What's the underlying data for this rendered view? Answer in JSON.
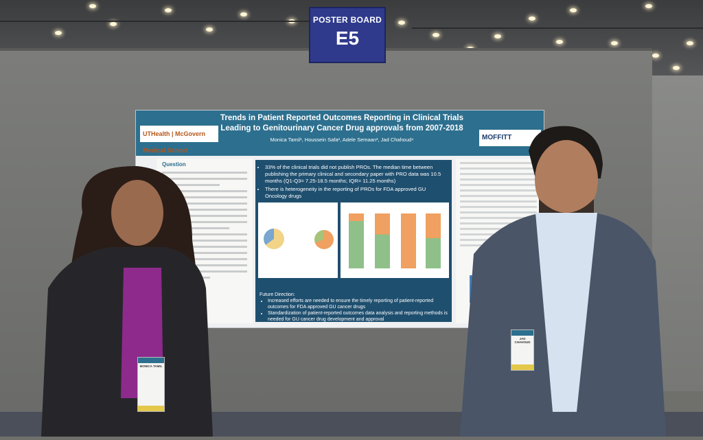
{
  "scene": "poster-session-photo",
  "sign": {
    "line1": "POSTER BOARD",
    "line2": "E5",
    "color": "#2f3a8c"
  },
  "poster": {
    "title_line1": "Trends in Patient Reported Outcomes Reporting in Clinical Trials",
    "title_line2": "Leading to Genitourinary Cancer Drug approvals from 2007-2018",
    "authors": "Monica Tamil¹, Houssein Safa², Adele Semaan³, Jad Chahoud⁴",
    "logo_left": "UTHealth | McGovern Medical School",
    "logo_right": "MOFFITT",
    "left_heading": "Question",
    "bullets": [
      "33% of the clinical trials did not publish PROs. The median time between publishing the primary clinical and secondary paper with PRO data was 10.5 months (Q1-Q3= 7.25-18.5 months; IQR= 11.25 months)",
      "There is heterogeneity in the reporting of PROs for FDA approved GU Oncology drugs"
    ],
    "future_heading": "Future Direction:",
    "future_items": [
      "Increased efforts are needed to ensure the timely reporting of patient-reported outcomes for FDA approved GU cancer drugs",
      "Standardization of patient-reported outcomes data analysis and reporting methods is needed for GU cancer drug development and approval"
    ],
    "header_color": "#2d6f8e",
    "panel_color": "#1f4f6f"
  },
  "badges": {
    "left_name": "MONICA TAMIL",
    "right_name": "JAD CHAHOUD"
  }
}
